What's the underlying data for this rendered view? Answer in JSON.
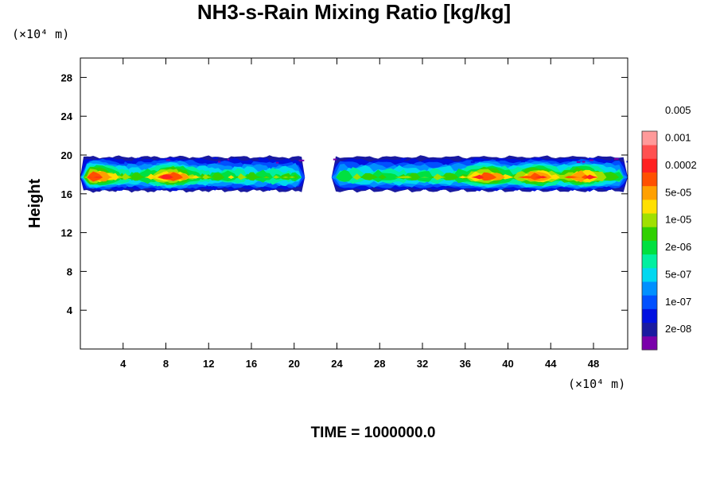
{
  "chart_data": {
    "type": "heatmap",
    "title": "NH3-s-Rain Mixing Ratio [kg/kg]",
    "ylabel": "Height",
    "x_scale_label": "(×10⁴ m)",
    "y_scale_label": "(×10⁴ m)",
    "xlim": [
      0,
      51.2
    ],
    "ylim": [
      0,
      30
    ],
    "x_ticks": [
      4,
      8,
      12,
      16,
      20,
      24,
      28,
      32,
      36,
      40,
      44,
      48
    ],
    "y_ticks": [
      4,
      8,
      12,
      16,
      20,
      24,
      28
    ],
    "x_tick_labels": [
      "4",
      "8",
      "12",
      "16",
      "20",
      "24",
      "28",
      "32",
      "36",
      "40",
      "44",
      "48"
    ],
    "y_tick_labels": [
      "4",
      "8",
      "12",
      "16",
      "20",
      "24",
      "28"
    ],
    "footer": "TIME = 1000000.0",
    "colorbar": {
      "colors": [
        "#7a00aa",
        "#1a1aa0",
        "#0010e0",
        "#0050ff",
        "#0090ff",
        "#00d8f0",
        "#00f0a0",
        "#00e040",
        "#30d000",
        "#a0e000",
        "#ffe000",
        "#ffa000",
        "#ff5000",
        "#ff2020",
        "#ff5050",
        "#ff9a9a"
      ],
      "labels": [
        "2e-08",
        "1e-07",
        "5e-07",
        "2e-06",
        "1e-05",
        "5e-05",
        "0.0002",
        "0.001",
        "0.005"
      ]
    },
    "cloud_layer": {
      "base_height": 16.3,
      "top_height": 19.8,
      "core_height": 17.7,
      "gap_x_range": [
        21.0,
        23.5
      ],
      "segments": [
        {
          "x_start": 0.0,
          "x_end": 21.0,
          "levels": 13
        },
        {
          "x_start": 23.5,
          "x_end": 51.2,
          "levels": 13
        }
      ],
      "hotspots": [
        {
          "x": 1.5,
          "y": 17.8,
          "level": 13
        },
        {
          "x": 8.5,
          "y": 17.4,
          "level": 13
        },
        {
          "x": 38.0,
          "y": 18.2,
          "level": 12
        },
        {
          "x": 42.8,
          "y": 18.0,
          "level": 13
        },
        {
          "x": 47.0,
          "y": 17.6,
          "level": 12
        }
      ]
    }
  }
}
